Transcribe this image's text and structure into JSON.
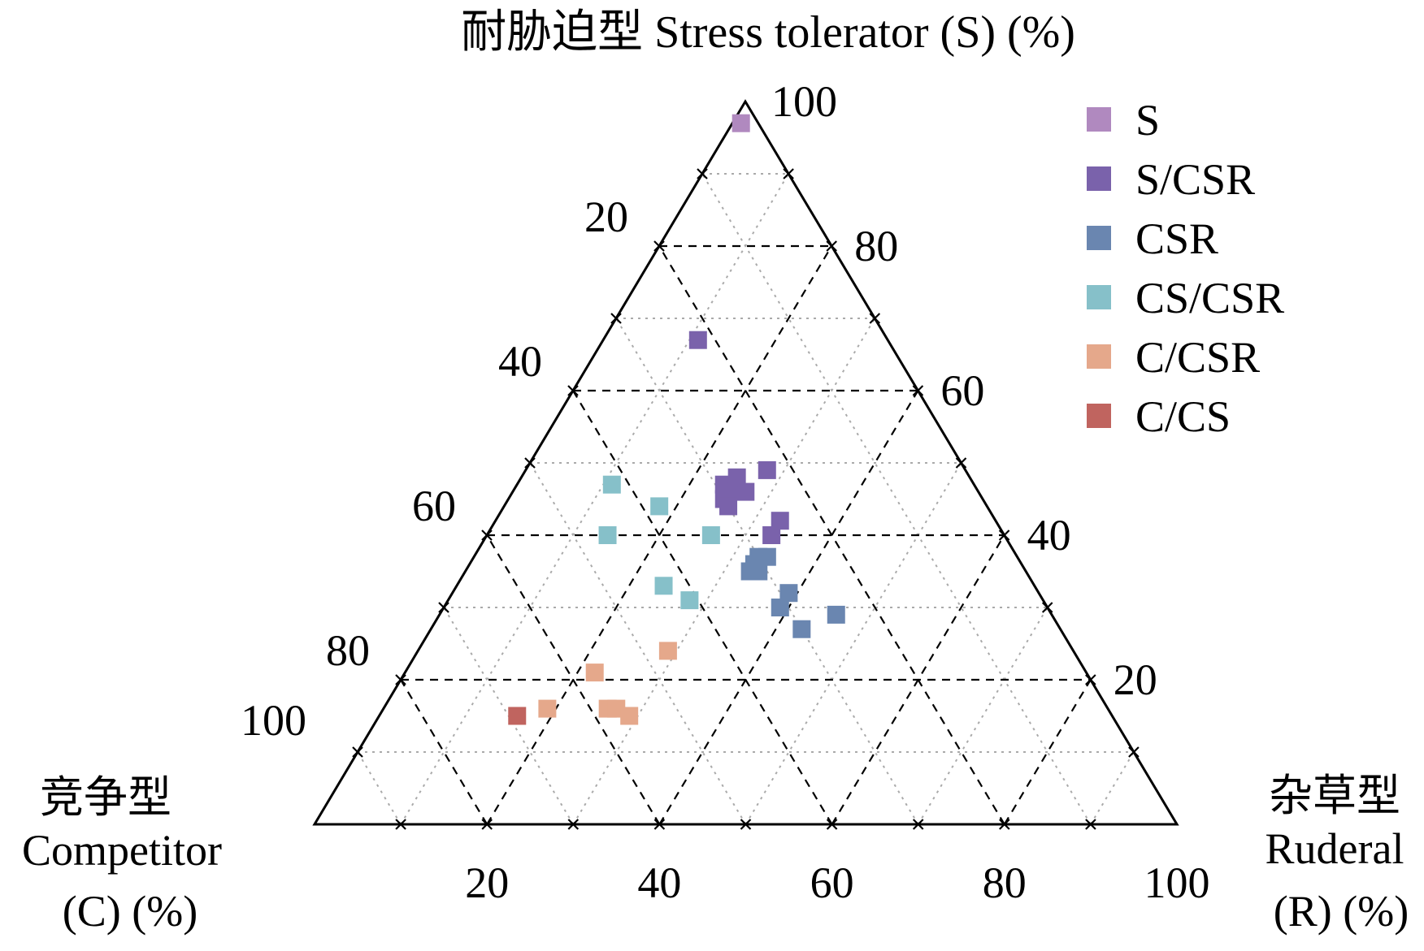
{
  "chart_data": {
    "type": "ternary-scatter",
    "title": {
      "top_cn": "耐胁迫型",
      "top_en": "Stress tolerator (S) (%)"
    },
    "axes": {
      "S": {
        "cn": "耐胁迫型",
        "en": "Stress tolerator (S) (%)",
        "range": [
          0,
          100
        ]
      },
      "C": {
        "cn": "竞争型",
        "en_line1": "Competitor",
        "en_line2": "(C) (%)",
        "range": [
          0,
          100
        ]
      },
      "R": {
        "cn": "杂草型",
        "en_line1": "Ruderal",
        "en_line2": "(R) (%)",
        "range": [
          0,
          100
        ]
      }
    },
    "tick_labels": {
      "S": [
        "20",
        "40",
        "60",
        "80",
        "100"
      ],
      "C": [
        "20",
        "40",
        "60",
        "80",
        "100"
      ],
      "R": [
        "20",
        "40",
        "60",
        "80",
        "100"
      ]
    },
    "legend": [
      {
        "name": "S",
        "color": "#B089BF"
      },
      {
        "name": "S/CSR",
        "color": "#7A62AB"
      },
      {
        "name": "CSR",
        "color": "#6A86B0"
      },
      {
        "name": "CS/CSR",
        "color": "#86C0C9"
      },
      {
        "name": "C/CSR",
        "color": "#E5A88B"
      },
      {
        "name": "C/CS",
        "color": "#C0645F"
      }
    ],
    "series": [
      {
        "name": "S",
        "points": [
          {
            "C": 2,
            "S": 97,
            "R": 1
          }
        ]
      },
      {
        "name": "S/CSR",
        "points": [
          {
            "C": 22,
            "S": 67,
            "R": 11
          },
          {
            "C": 23,
            "S": 49,
            "R": 28
          },
          {
            "C": 29,
            "S": 47,
            "R": 24
          },
          {
            "C": 27,
            "S": 46,
            "R": 27
          },
          {
            "C": 27,
            "S": 48,
            "R": 25
          },
          {
            "C": 29,
            "S": 46,
            "R": 25
          },
          {
            "C": 30,
            "S": 45,
            "R": 25
          },
          {
            "C": 30,
            "S": 44,
            "R": 26
          },
          {
            "C": 25,
            "S": 42,
            "R": 33
          },
          {
            "C": 27,
            "S": 40,
            "R": 33
          }
        ]
      },
      {
        "name": "CSR",
        "points": [
          {
            "C": 30,
            "S": 37,
            "R": 33
          },
          {
            "C": 29,
            "S": 37,
            "R": 34
          },
          {
            "C": 31,
            "S": 36,
            "R": 33
          },
          {
            "C": 32,
            "S": 35,
            "R": 33
          },
          {
            "C": 31,
            "S": 35,
            "R": 34
          },
          {
            "C": 29,
            "S": 32,
            "R": 39
          },
          {
            "C": 31,
            "S": 30,
            "R": 39
          },
          {
            "C": 25,
            "S": 29,
            "R": 46
          },
          {
            "C": 30,
            "S": 27,
            "R": 43
          }
        ]
      },
      {
        "name": "CS/CSR",
        "points": [
          {
            "C": 42,
            "S": 47,
            "R": 11
          },
          {
            "C": 38,
            "S": 44,
            "R": 18
          },
          {
            "C": 46,
            "S": 40,
            "R": 14
          },
          {
            "C": 34,
            "S": 40,
            "R": 26
          },
          {
            "C": 43,
            "S": 33,
            "R": 24
          },
          {
            "C": 41,
            "S": 31,
            "R": 28
          }
        ]
      },
      {
        "name": "C/CSR",
        "points": [
          {
            "C": 47,
            "S": 24,
            "R": 29
          },
          {
            "C": 57,
            "S": 21,
            "R": 22
          },
          {
            "C": 65,
            "S": 16,
            "R": 19
          },
          {
            "C": 58,
            "S": 16,
            "R": 26
          },
          {
            "C": 57,
            "S": 16,
            "R": 27
          },
          {
            "C": 56,
            "S": 15,
            "R": 29
          }
        ]
      },
      {
        "name": "C/CS",
        "points": [
          {
            "C": 69,
            "S": 15,
            "R": 16
          }
        ]
      }
    ]
  }
}
